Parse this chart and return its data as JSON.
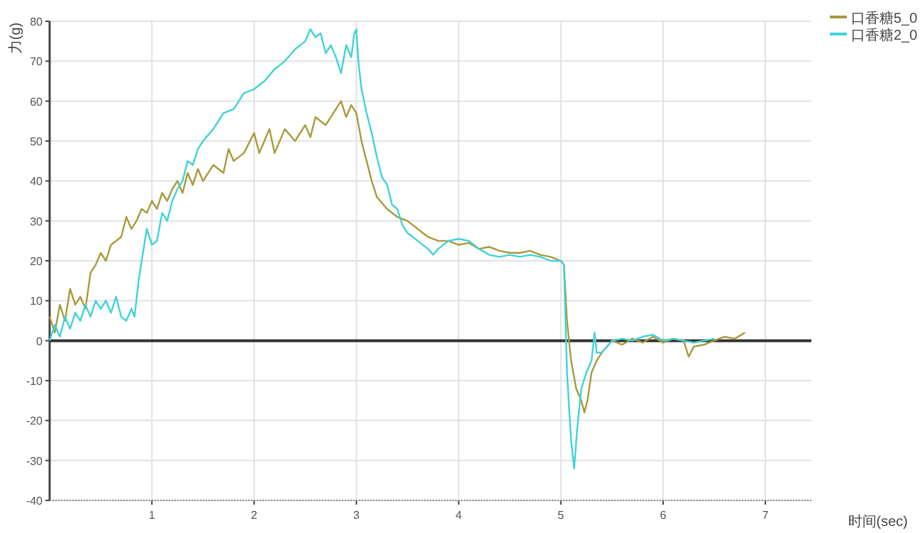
{
  "chart_data": {
    "type": "line",
    "xlabel": "时间(sec)",
    "ylabel": "力(g)",
    "xlim": [
      0,
      7.45
    ],
    "ylim": [
      -40,
      80
    ],
    "xticks": [
      1,
      2,
      3,
      4,
      5,
      6,
      7
    ],
    "yticks": [
      -40,
      -30,
      -20,
      -10,
      0,
      10,
      20,
      30,
      40,
      50,
      60,
      70,
      80
    ],
    "grid": true,
    "legend": "top right",
    "ref_lines": [
      {
        "axis": "y",
        "value": 0,
        "color": "#333333"
      }
    ],
    "series": [
      {
        "name": "口香糖5_0",
        "color": "#a89a3c",
        "x": [
          0,
          0.05,
          0.1,
          0.15,
          0.2,
          0.25,
          0.3,
          0.35,
          0.4,
          0.45,
          0.5,
          0.55,
          0.6,
          0.65,
          0.7,
          0.75,
          0.8,
          0.85,
          0.9,
          0.95,
          1.0,
          1.05,
          1.1,
          1.15,
          1.2,
          1.25,
          1.3,
          1.35,
          1.4,
          1.45,
          1.5,
          1.6,
          1.7,
          1.75,
          1.8,
          1.9,
          2.0,
          2.05,
          2.1,
          2.15,
          2.2,
          2.3,
          2.4,
          2.5,
          2.55,
          2.6,
          2.7,
          2.8,
          2.85,
          2.9,
          2.95,
          3.0,
          3.05,
          3.1,
          3.15,
          3.2,
          3.3,
          3.4,
          3.5,
          3.6,
          3.7,
          3.8,
          3.9,
          4.0,
          4.1,
          4.2,
          4.3,
          4.4,
          4.5,
          4.6,
          4.7,
          4.8,
          4.9,
          5.0,
          5.03,
          5.06,
          5.1,
          5.15,
          5.2,
          5.23,
          5.26,
          5.3,
          5.35,
          5.4,
          5.5,
          5.6,
          5.7,
          5.8,
          5.9,
          6.0,
          6.1,
          6.2,
          6.25,
          6.3,
          6.4,
          6.5,
          6.6,
          6.7,
          6.8
        ],
        "values": [
          6,
          2,
          9,
          5,
          13,
          9,
          11,
          8,
          17,
          19,
          22,
          20,
          24,
          25,
          26,
          31,
          28,
          30,
          33,
          32,
          35,
          33,
          37,
          35,
          38,
          40,
          37,
          42,
          39,
          43,
          40,
          44,
          42,
          48,
          45,
          47,
          52,
          47,
          50,
          53,
          47,
          53,
          50,
          54,
          51,
          56,
          54,
          58,
          60,
          56,
          59,
          57,
          50,
          45,
          40,
          36,
          33,
          31,
          30,
          28,
          26,
          25,
          25,
          24,
          24.5,
          23,
          23.5,
          22.5,
          22,
          22,
          22.5,
          21.5,
          21,
          20,
          19,
          5,
          -5,
          -12,
          -15,
          -18,
          -15,
          -8,
          -5,
          -3,
          0,
          -1,
          0.5,
          -0.5,
          1,
          -0.5,
          0.5,
          0,
          -4,
          -1.5,
          -1,
          0,
          1,
          0.5,
          2
        ]
      },
      {
        "name": "口香糖2_0",
        "color": "#3fd3d8",
        "x": [
          0,
          0.05,
          0.1,
          0.15,
          0.2,
          0.25,
          0.3,
          0.35,
          0.4,
          0.45,
          0.5,
          0.55,
          0.6,
          0.65,
          0.7,
          0.75,
          0.8,
          0.83,
          0.87,
          0.9,
          0.95,
          1.0,
          1.05,
          1.1,
          1.15,
          1.2,
          1.25,
          1.3,
          1.35,
          1.4,
          1.45,
          1.5,
          1.6,
          1.7,
          1.8,
          1.9,
          2.0,
          2.1,
          2.2,
          2.3,
          2.4,
          2.5,
          2.55,
          2.6,
          2.65,
          2.7,
          2.75,
          2.8,
          2.85,
          2.9,
          2.95,
          2.98,
          3.0,
          3.02,
          3.05,
          3.1,
          3.15,
          3.2,
          3.25,
          3.3,
          3.35,
          3.4,
          3.45,
          3.5,
          3.6,
          3.7,
          3.75,
          3.8,
          3.9,
          4.0,
          4.1,
          4.2,
          4.3,
          4.4,
          4.5,
          4.6,
          4.7,
          4.8,
          4.9,
          5.0,
          5.03,
          5.06,
          5.1,
          5.13,
          5.16,
          5.2,
          5.25,
          5.3,
          5.33,
          5.35,
          5.4,
          5.5,
          5.6,
          5.7,
          5.8,
          5.9,
          6.0,
          6.1,
          6.2,
          6.3,
          6.4,
          6.5
        ],
        "values": [
          0,
          4,
          1,
          6,
          3,
          7,
          5,
          9,
          6,
          10,
          8,
          10,
          7,
          11,
          6,
          5,
          8,
          6,
          15,
          20,
          28,
          24,
          25,
          32,
          30,
          35,
          38,
          40,
          45,
          44,
          48,
          50,
          53,
          57,
          58,
          62,
          63,
          65,
          68,
          70,
          73,
          75,
          78,
          76,
          77,
          72,
          74,
          71,
          67,
          74,
          71,
          77,
          78,
          70,
          63,
          57,
          52,
          46,
          41,
          39,
          34,
          33,
          29,
          27,
          25,
          23,
          21.5,
          23,
          25,
          25.5,
          25,
          23,
          21.5,
          21,
          21.5,
          21,
          21.5,
          21,
          20,
          20,
          19,
          -8,
          -25,
          -32,
          -22,
          -12,
          -8,
          -5,
          2,
          -3,
          -3,
          0,
          0.5,
          0,
          1,
          1.5,
          0,
          0.5,
          0,
          -0.5,
          0,
          0.5
        ]
      }
    ]
  }
}
